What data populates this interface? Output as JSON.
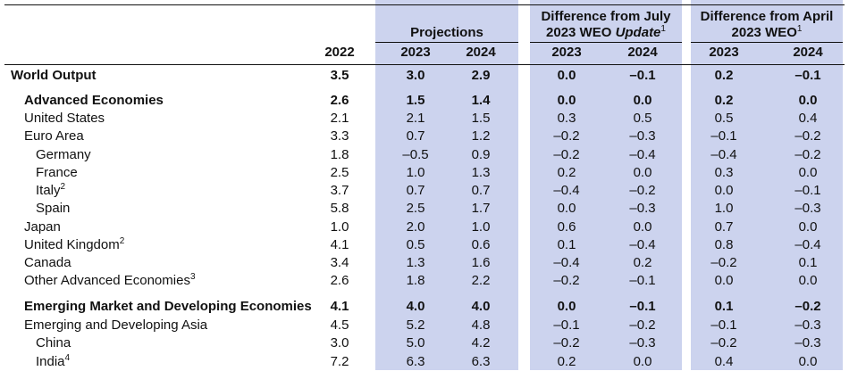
{
  "headers": {
    "projections": "Projections",
    "diff_july_line1": "Difference from July",
    "diff_july_line2_a": "2023 WEO ",
    "diff_july_line2_italic": "Update",
    "diff_july_note": "1",
    "diff_april_line1": "Difference from April",
    "diff_april_line2": "2023 WEO",
    "diff_april_note": "1"
  },
  "columns": [
    "2022",
    "2023",
    "2024",
    "2023",
    "2024",
    "2023",
    "2024"
  ],
  "colors": {
    "projection_band": "#ccd3ee"
  },
  "rows": [
    {
      "label": "World Output",
      "note": "",
      "level": 0,
      "bold": true,
      "values": [
        "3.5",
        "3.0",
        "2.9",
        "0.0",
        "–0.1",
        "0.2",
        "–0.1"
      ]
    },
    {
      "label": "Advanced Economies",
      "note": "",
      "level": 1,
      "bold": true,
      "values": [
        "2.6",
        "1.5",
        "1.4",
        "0.0",
        "0.0",
        "0.2",
        "0.0"
      ]
    },
    {
      "label": "United States",
      "note": "",
      "level": 1,
      "bold": false,
      "values": [
        "2.1",
        "2.1",
        "1.5",
        "0.3",
        "0.5",
        "0.5",
        "0.4"
      ]
    },
    {
      "label": "Euro Area",
      "note": "",
      "level": 1,
      "bold": false,
      "values": [
        "3.3",
        "0.7",
        "1.2",
        "–0.2",
        "–0.3",
        "–0.1",
        "–0.2"
      ]
    },
    {
      "label": "Germany",
      "note": "",
      "level": 2,
      "bold": false,
      "values": [
        "1.8",
        "–0.5",
        "0.9",
        "–0.2",
        "–0.4",
        "–0.4",
        "–0.2"
      ]
    },
    {
      "label": "France",
      "note": "",
      "level": 2,
      "bold": false,
      "values": [
        "2.5",
        "1.0",
        "1.3",
        "0.2",
        "0.0",
        "0.3",
        "0.0"
      ]
    },
    {
      "label": "Italy",
      "note": "2",
      "level": 2,
      "bold": false,
      "values": [
        "3.7",
        "0.7",
        "0.7",
        "–0.4",
        "–0.2",
        "0.0",
        "–0.1"
      ]
    },
    {
      "label": "Spain",
      "note": "",
      "level": 2,
      "bold": false,
      "values": [
        "5.8",
        "2.5",
        "1.7",
        "0.0",
        "–0.3",
        "1.0",
        "–0.3"
      ]
    },
    {
      "label": "Japan",
      "note": "",
      "level": 1,
      "bold": false,
      "values": [
        "1.0",
        "2.0",
        "1.0",
        "0.6",
        "0.0",
        "0.7",
        "0.0"
      ]
    },
    {
      "label": "United Kingdom",
      "note": "2",
      "level": 1,
      "bold": false,
      "values": [
        "4.1",
        "0.5",
        "0.6",
        "0.1",
        "–0.4",
        "0.8",
        "–0.4"
      ]
    },
    {
      "label": "Canada",
      "note": "",
      "level": 1,
      "bold": false,
      "values": [
        "3.4",
        "1.3",
        "1.6",
        "–0.4",
        "0.2",
        "–0.2",
        "0.1"
      ]
    },
    {
      "label": "Other Advanced Economies",
      "note": "3",
      "level": 1,
      "bold": false,
      "values": [
        "2.6",
        "1.8",
        "2.2",
        "–0.2",
        "–0.1",
        "0.0",
        "0.0"
      ]
    },
    {
      "label": "Emerging Market and Developing Economies",
      "note": "",
      "level": 1,
      "bold": true,
      "values": [
        "4.1",
        "4.0",
        "4.0",
        "0.0",
        "–0.1",
        "0.1",
        "–0.2"
      ]
    },
    {
      "label": "Emerging and Developing Asia",
      "note": "",
      "level": 1,
      "bold": false,
      "values": [
        "4.5",
        "5.2",
        "4.8",
        "–0.1",
        "–0.2",
        "–0.1",
        "–0.3"
      ]
    },
    {
      "label": "China",
      "note": "",
      "level": 2,
      "bold": false,
      "values": [
        "3.0",
        "5.0",
        "4.2",
        "–0.2",
        "–0.3",
        "–0.2",
        "–0.3"
      ]
    },
    {
      "label": "India",
      "note": "4",
      "level": 2,
      "bold": false,
      "values": [
        "7.2",
        "6.3",
        "6.3",
        "0.2",
        "0.0",
        "0.4",
        "0.0"
      ]
    }
  ]
}
